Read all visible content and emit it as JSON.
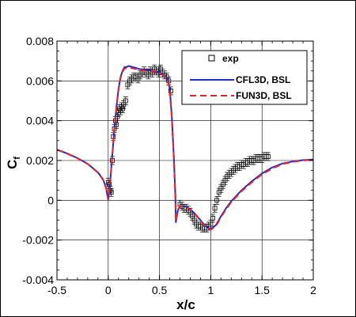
{
  "chart_data": {
    "type": "line",
    "xlabel": "x/c",
    "ylabel_main": "C",
    "ylabel_sub": "f",
    "xlim": [
      -0.5,
      2
    ],
    "ylim": [
      -0.004,
      0.008
    ],
    "xticks": [
      "-0.5",
      "0",
      "0.5",
      "1",
      "1.5",
      "2"
    ],
    "yticks": [
      "-0.004",
      "-0.002",
      "0",
      "0.002",
      "0.004",
      "0.006",
      "0.008"
    ],
    "grid": true,
    "legend_position": "top-right",
    "series": [
      {
        "name": "exp",
        "kind": "markers-errorbars",
        "color": "#000000",
        "x": [
          0.0,
          0.01,
          0.02,
          0.03,
          0.04,
          0.05,
          0.06,
          0.07,
          0.08,
          0.09,
          0.1,
          0.11,
          0.12,
          0.13,
          0.14,
          0.15,
          0.17,
          0.19,
          0.21,
          0.23,
          0.25,
          0.27,
          0.29,
          0.31,
          0.33,
          0.35,
          0.37,
          0.39,
          0.41,
          0.43,
          0.45,
          0.47,
          0.49,
          0.51,
          0.53,
          0.55,
          0.57,
          0.59,
          0.61,
          0.7,
          0.72,
          0.74,
          0.76,
          0.78,
          0.8,
          0.82,
          0.84,
          0.86,
          0.88,
          0.9,
          0.92,
          0.94,
          0.96,
          0.98,
          1.0,
          1.02,
          1.04,
          1.06,
          1.08,
          1.1,
          1.12,
          1.14,
          1.16,
          1.18,
          1.2,
          1.22,
          1.24,
          1.26,
          1.28,
          1.3,
          1.32,
          1.34,
          1.36,
          1.38,
          1.4,
          1.42,
          1.44,
          1.46,
          1.48,
          1.5,
          1.52,
          1.54,
          1.56
        ],
        "y": [
          0.0009,
          0.0008,
          0.0005,
          0.0004,
          0.002,
          0.0032,
          0.0036,
          0.004,
          0.0038,
          0.0042,
          0.0044,
          0.0046,
          0.0045,
          0.0047,
          0.0046,
          0.0048,
          0.005,
          0.0058,
          0.006,
          0.0061,
          0.0062,
          0.0062,
          0.0061,
          0.0063,
          0.0064,
          0.0065,
          0.0064,
          0.0063,
          0.0065,
          0.0064,
          0.0066,
          0.0065,
          0.0064,
          0.0066,
          0.0064,
          0.0063,
          0.0062,
          0.006,
          0.0055,
          -0.0002,
          -0.0003,
          -0.0004,
          -0.0004,
          -0.0005,
          -0.0006,
          -0.0008,
          -0.001,
          -0.0012,
          -0.0013,
          -0.0013,
          -0.0014,
          -0.0014,
          -0.0014,
          -0.0013,
          -0.0012,
          -0.0009,
          -0.0004,
          0.0,
          0.0004,
          0.0006,
          0.0008,
          0.001,
          0.0012,
          0.0013,
          0.0014,
          0.0015,
          0.0016,
          0.0017,
          0.0017,
          0.0018,
          0.0018,
          0.0019,
          0.0019,
          0.002,
          0.002,
          0.002,
          0.0021,
          0.0021,
          0.0021,
          0.0021,
          0.0022,
          0.0022,
          0.0022
        ],
        "err": 0.0002
      },
      {
        "name": "CFL3D, BSL",
        "kind": "line",
        "color": "#1f2dcc",
        "dash": "solid",
        "x": [
          -0.5,
          -0.4,
          -0.3,
          -0.2,
          -0.1,
          -0.05,
          -0.02,
          0.0,
          0.02,
          0.04,
          0.06,
          0.08,
          0.1,
          0.12,
          0.14,
          0.15,
          0.16,
          0.18,
          0.2,
          0.25,
          0.3,
          0.35,
          0.4,
          0.45,
          0.5,
          0.55,
          0.58,
          0.6,
          0.62,
          0.64,
          0.655,
          0.66,
          0.67,
          0.68,
          0.7,
          0.75,
          0.8,
          0.85,
          0.9,
          0.95,
          1.0,
          1.05,
          1.1,
          1.15,
          1.2,
          1.3,
          1.4,
          1.5,
          1.6,
          1.7,
          1.8,
          1.9,
          2.0
        ],
        "y": [
          0.00255,
          0.00235,
          0.00212,
          0.00183,
          0.0014,
          0.00105,
          0.0006,
          0.0,
          0.001,
          0.0023,
          0.0036,
          0.0047,
          0.0056,
          0.0062,
          0.0065,
          0.0066,
          0.0067,
          0.0067,
          0.00675,
          0.00668,
          0.0066,
          0.00656,
          0.00654,
          0.0065,
          0.00643,
          0.00628,
          0.0061,
          0.0056,
          0.0042,
          0.0022,
          0.0002,
          -0.0011,
          -0.0008,
          -0.0005,
          -0.0003,
          -0.0003,
          -0.00045,
          -0.0007,
          -0.001,
          -0.0013,
          -0.00145,
          -0.00125,
          -0.0008,
          -0.0004,
          -5e-05,
          0.0005,
          0.00095,
          0.00135,
          0.00165,
          0.00185,
          0.00195,
          0.00202,
          0.00205
        ]
      },
      {
        "name": "FUN3D, BSL",
        "kind": "line",
        "color": "#e8202a",
        "dash": "dashed",
        "x": [
          -0.5,
          -0.4,
          -0.3,
          -0.2,
          -0.1,
          -0.05,
          -0.02,
          0.0,
          0.02,
          0.04,
          0.06,
          0.08,
          0.1,
          0.12,
          0.14,
          0.15,
          0.16,
          0.18,
          0.2,
          0.25,
          0.3,
          0.35,
          0.4,
          0.45,
          0.5,
          0.55,
          0.58,
          0.6,
          0.62,
          0.64,
          0.655,
          0.66,
          0.67,
          0.68,
          0.7,
          0.75,
          0.8,
          0.85,
          0.9,
          0.95,
          1.0,
          1.05,
          1.1,
          1.15,
          1.2,
          1.3,
          1.4,
          1.5,
          1.6,
          1.7,
          1.8,
          1.9,
          2.0
        ],
        "y": [
          0.00254,
          0.00234,
          0.00211,
          0.00182,
          0.00139,
          0.00104,
          0.0006,
          2e-05,
          0.00098,
          0.00226,
          0.00355,
          0.00465,
          0.00555,
          0.00615,
          0.00645,
          0.00655,
          0.00662,
          0.00665,
          0.00668,
          0.00662,
          0.00655,
          0.00652,
          0.0065,
          0.00647,
          0.0064,
          0.00625,
          0.00605,
          0.00555,
          0.00415,
          0.00215,
          0.00018,
          -0.00108,
          -0.00078,
          -0.0005,
          -0.0003,
          -0.00032,
          -0.00048,
          -0.00072,
          -0.00102,
          -0.00132,
          -0.00148,
          -0.0013,
          -0.00085,
          -0.00045,
          -0.0001,
          0.00045,
          0.0009,
          0.0013,
          0.0016,
          0.00182,
          0.00193,
          0.002,
          0.00204
        ]
      }
    ]
  }
}
